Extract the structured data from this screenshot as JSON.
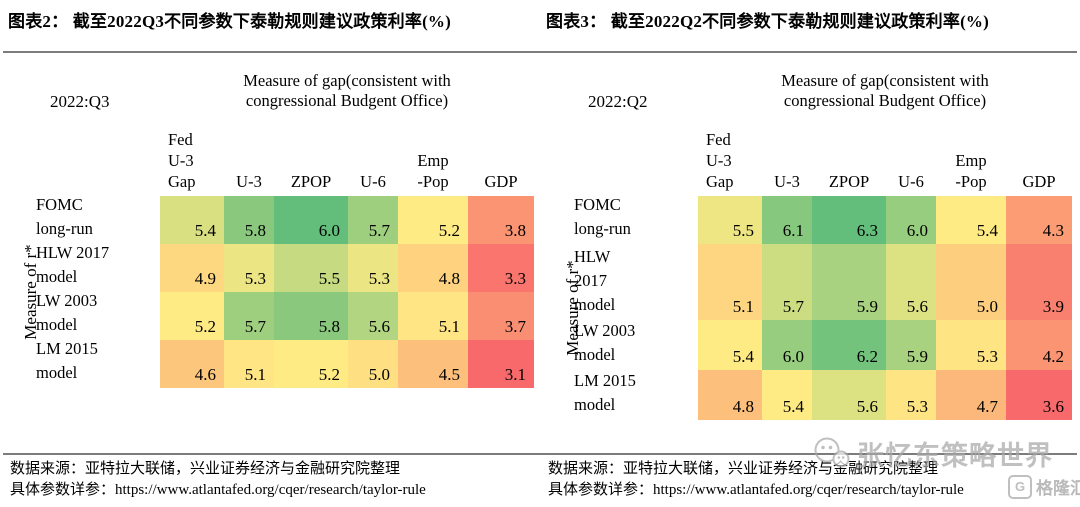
{
  "titles": {
    "figure2": "图表2： 截至2022Q3不同参数下泰勒规则建议政策利率(%)",
    "figure3": "图表3： 截至2022Q2不同参数下泰勒规则建议政策利率(%)"
  },
  "watermark": {
    "brand": "张忆东策略世界",
    "logo_text": "格隆汇",
    "logo_letter": "G",
    "color": "#a9a9a9"
  },
  "chart_data": [
    {
      "type": "heatmap",
      "title": "图表2： 截至2022Q3不同参数下泰勒规则建议政策利率(%)",
      "period": "2022:Q3",
      "x_header_line1": "Measure of gap(consistent with",
      "x_header_line2": "congressional Budgent Office)",
      "ylabel": "Measure of r*",
      "columns": [
        {
          "key": "fed-u3-gap",
          "name": "Fed U-3 Gap",
          "lines": [
            "Fed",
            "U-3",
            "Gap"
          ]
        },
        {
          "key": "u3",
          "name": "U-3",
          "lines": [
            "U-3"
          ]
        },
        {
          "key": "zpop",
          "name": "ZPOP",
          "lines": [
            "ZPOP"
          ]
        },
        {
          "key": "u6",
          "name": "U-6",
          "lines": [
            "U-6"
          ]
        },
        {
          "key": "emp-pop",
          "name": "Emp-Pop",
          "lines": [
            "Emp",
            "-Pop"
          ]
        },
        {
          "key": "gdp",
          "name": "GDP",
          "lines": [
            "GDP"
          ]
        }
      ],
      "rows": [
        {
          "name": "FOMC long-run",
          "label_lines": [
            "FOMC",
            "long-run"
          ],
          "values": [
            5.4,
            5.8,
            6.0,
            5.7,
            5.2,
            3.8
          ]
        },
        {
          "name": "HLW 2017 model",
          "label_lines": [
            "HLW 2017",
            "model"
          ],
          "values": [
            4.9,
            5.3,
            5.5,
            5.3,
            4.8,
            3.3
          ]
        },
        {
          "name": "LW 2003 model",
          "label_lines": [
            "LW 2003",
            "model"
          ],
          "values": [
            5.2,
            5.7,
            5.8,
            5.6,
            5.1,
            3.7
          ]
        },
        {
          "name": "LM 2015 model",
          "label_lines": [
            "LM 2015",
            "model"
          ],
          "values": [
            4.6,
            5.1,
            5.2,
            5.0,
            4.5,
            3.1
          ]
        }
      ],
      "value_range": [
        3.1,
        6.0
      ],
      "color_scale": {
        "min": 3.1,
        "mid": 5.2,
        "max": 6.0,
        "min_color": "#F8696B",
        "mid_color": "#FFEB84",
        "max_color": "#63BE7B"
      },
      "source_line1": "数据来源：亚特拉大联储，兴业证券经济与金融研究院整理",
      "source_line2": "具体参数详参：https://www.atlantafed.org/cqer/research/taylor-rule"
    },
    {
      "type": "heatmap",
      "title": "图表3： 截至2022Q2不同参数下泰勒规则建议政策利率(%)",
      "period": "2022:Q2",
      "x_header_line1": "Measure of gap(consistent with",
      "x_header_line2": "congressional Budgent Office)",
      "ylabel": "Measure of r*",
      "columns": [
        {
          "key": "fed-u3-gap",
          "name": "Fed U-3 Gap",
          "lines": [
            "Fed",
            "U-3",
            "Gap"
          ]
        },
        {
          "key": "u3",
          "name": "U-3",
          "lines": [
            "U-3"
          ]
        },
        {
          "key": "zpop",
          "name": "ZPOP",
          "lines": [
            "ZPOP"
          ]
        },
        {
          "key": "u6",
          "name": "U-6",
          "lines": [
            "U-6"
          ]
        },
        {
          "key": "emp-pop",
          "name": "Emp-Pop",
          "lines": [
            "Emp",
            "-Pop"
          ]
        },
        {
          "key": "gdp",
          "name": "GDP",
          "lines": [
            "GDP"
          ]
        }
      ],
      "rows": [
        {
          "name": "FOMC long-run",
          "label_lines": [
            "FOMC",
            "long-run"
          ],
          "values": [
            5.5,
            6.1,
            6.3,
            6.0,
            5.4,
            4.3
          ]
        },
        {
          "name": "HLW 2017 model",
          "label_lines": [
            "HLW",
            "2017",
            "model"
          ],
          "values": [
            5.1,
            5.7,
            5.9,
            5.6,
            5.0,
            3.9
          ]
        },
        {
          "name": "LW 2003 model",
          "label_lines": [
            "LW 2003",
            "model"
          ],
          "values": [
            5.4,
            6.0,
            6.2,
            5.9,
            5.3,
            4.2
          ]
        },
        {
          "name": "LM 2015 model",
          "label_lines": [
            "LM 2015",
            "model"
          ],
          "values": [
            4.8,
            5.4,
            5.6,
            5.3,
            4.7,
            3.6
          ]
        }
      ],
      "value_range": [
        3.6,
        6.3
      ],
      "color_scale": {
        "min": 3.6,
        "mid": 5.4,
        "max": 6.3,
        "min_color": "#F8696B",
        "mid_color": "#FFEB84",
        "max_color": "#63BE7B"
      },
      "source_line1": "数据来源：亚特拉大联储，兴业证券经济与金融研究院整理",
      "source_line2": "具体参数详参：https://www.atlantafed.org/cqer/research/taylor-rule"
    }
  ]
}
